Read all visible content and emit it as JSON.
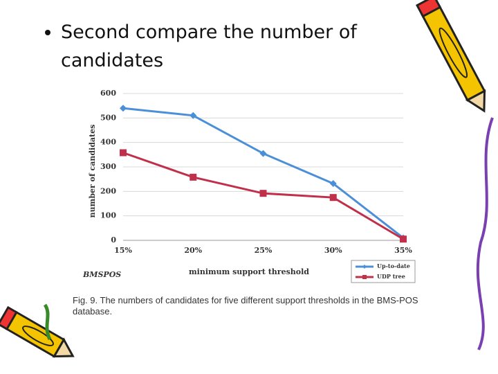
{
  "slide": {
    "bullet": "Second compare the number of candidates"
  },
  "chart_data": {
    "type": "line",
    "y_label": "number of candidates",
    "x_label": "minimum support threshold",
    "annotation": "BMSPOS",
    "caption": "Fig. 9.  The numbers of candidates for five different support thresholds in the BMS-POS database.",
    "categories": [
      "15%",
      "20%",
      "25%",
      "30%",
      "35%"
    ],
    "series": [
      {
        "name": "Up-to-date",
        "color": "#4a8fd8",
        "values": [
          540,
          510,
          355,
          232,
          10
        ]
      },
      {
        "name": "UDP tree",
        "color": "#c0304a",
        "values": [
          358,
          258,
          192,
          175,
          5
        ]
      }
    ],
    "ylim": [
      0,
      600
    ],
    "yticks": [
      0,
      100,
      200,
      300,
      400,
      500,
      600
    ],
    "grid": true
  }
}
